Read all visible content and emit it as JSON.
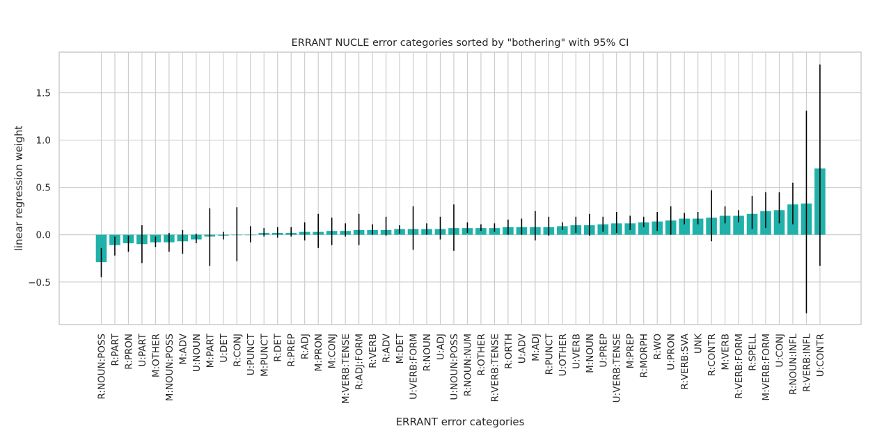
{
  "chart_data": {
    "type": "bar",
    "title": "ERRANT NUCLE error categories sorted by \"bothering\" with 95% CI",
    "xlabel": "ERRANT error categories",
    "ylabel": "linear regression weight",
    "ylim": [
      -0.95,
      1.93
    ],
    "yticks": [
      -0.5,
      0.0,
      0.5,
      1.0,
      1.5
    ],
    "ytick_labels": [
      "−0.5",
      "0.0",
      "0.5",
      "1.0",
      "1.5"
    ],
    "grid": true,
    "bar_color": "#20b2aa",
    "errorbar_color": "#000000",
    "grid_color": "#cccccc",
    "categories": [
      "R:NOUN:POSS",
      "R:PART",
      "R:PRON",
      "U:PART",
      "M:OTHER",
      "M:NOUN:POSS",
      "M:ADV",
      "U:NOUN",
      "M:PART",
      "U:DET",
      "R:CONJ",
      "U:PUNCT",
      "M:PUNCT",
      "R:DET",
      "R:PREP",
      "R:ADJ",
      "M:PRON",
      "M:CONJ",
      "M:VERB:TENSE",
      "R:ADJ:FORM",
      "R:VERB",
      "R:ADV",
      "M:DET",
      "U:VERB:FORM",
      "R:NOUN",
      "U:ADJ",
      "U:NOUN:POSS",
      "R:NOUN:NUM",
      "R:OTHER",
      "R:VERB:TENSE",
      "R:ORTH",
      "U:ADV",
      "M:ADJ",
      "R:PUNCT",
      "U:OTHER",
      "U:VERB",
      "M:NOUN",
      "U:PREP",
      "U:VERB:TENSE",
      "M:PREP",
      "R:MORPH",
      "R:WO",
      "U:PRON",
      "R:VERB:SVA",
      "UNK",
      "R:CONTR",
      "M:VERB",
      "R:VERB:FORM",
      "R:SPELL",
      "M:VERB:FORM",
      "U:CONJ",
      "R:NOUN:INFL",
      "R:VERB:INFL",
      "U:CONTR"
    ],
    "series": [
      {
        "values": [
          -0.29,
          -0.11,
          -0.09,
          -0.1,
          -0.08,
          -0.08,
          -0.07,
          -0.05,
          -0.02,
          -0.01,
          0.0,
          0.0,
          0.02,
          0.02,
          0.02,
          0.03,
          0.03,
          0.04,
          0.04,
          0.05,
          0.05,
          0.05,
          0.06,
          0.06,
          0.06,
          0.06,
          0.07,
          0.07,
          0.07,
          0.07,
          0.08,
          0.08,
          0.08,
          0.08,
          0.09,
          0.1,
          0.1,
          0.11,
          0.12,
          0.12,
          0.13,
          0.14,
          0.15,
          0.17,
          0.17,
          0.18,
          0.2,
          0.2,
          0.22,
          0.25,
          0.26,
          0.32,
          0.33,
          0.7
        ],
        "ci_low": [
          -0.45,
          -0.22,
          -0.18,
          -0.3,
          -0.13,
          -0.18,
          -0.2,
          -0.09,
          -0.33,
          -0.05,
          -0.28,
          -0.08,
          -0.02,
          -0.03,
          -0.02,
          -0.06,
          -0.14,
          -0.11,
          -0.02,
          -0.11,
          0.0,
          -0.01,
          0.01,
          -0.16,
          0.0,
          -0.05,
          -0.17,
          0.02,
          0.04,
          0.03,
          0.0,
          0.0,
          -0.06,
          -0.01,
          0.05,
          0.02,
          -0.01,
          0.03,
          0.02,
          0.05,
          0.08,
          0.04,
          0.0,
          0.11,
          0.11,
          -0.07,
          0.12,
          0.13,
          0.06,
          0.07,
          0.12,
          0.11,
          -0.83,
          -0.33
        ],
        "ci_high": [
          -0.14,
          -0.02,
          -0.01,
          0.1,
          -0.02,
          0.02,
          0.05,
          0.01,
          0.28,
          0.03,
          0.29,
          0.09,
          0.07,
          0.08,
          0.08,
          0.13,
          0.22,
          0.18,
          0.12,
          0.22,
          0.11,
          0.19,
          0.1,
          0.3,
          0.12,
          0.19,
          0.32,
          0.13,
          0.11,
          0.12,
          0.16,
          0.17,
          0.25,
          0.19,
          0.13,
          0.19,
          0.22,
          0.19,
          0.24,
          0.2,
          0.19,
          0.24,
          0.3,
          0.23,
          0.24,
          0.47,
          0.3,
          0.26,
          0.41,
          0.45,
          0.45,
          0.55,
          1.31,
          1.8
        ]
      }
    ]
  }
}
